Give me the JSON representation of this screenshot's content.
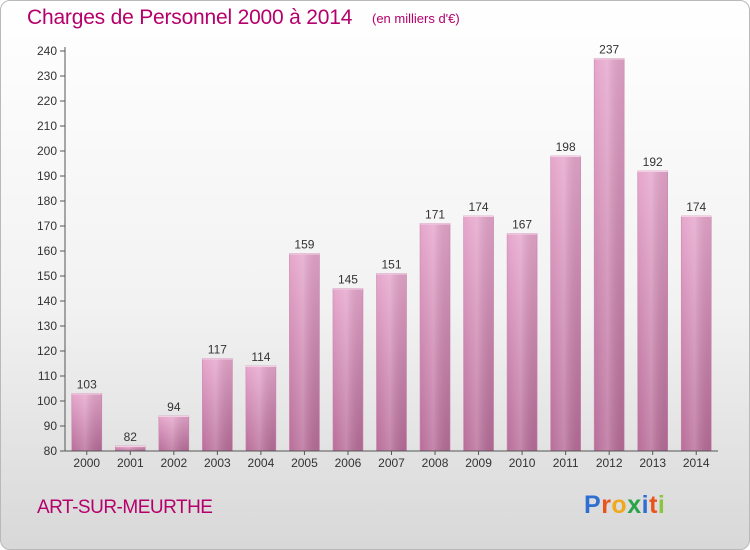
{
  "header": {
    "title": "Charges de Personnel 2000 à 2014",
    "subtitle": "(en milliers d'€)"
  },
  "footer": {
    "commune": "ART-SUR-MEURTHE",
    "brand": "Proxiti"
  },
  "colors": {
    "accent": "#b5006b",
    "bar_top": "#e6a6cc",
    "bar_bottom": "#b86d99",
    "brand_letters": [
      "#2f6fd1",
      "#e8541a",
      "#f0a81c",
      "#2aa34a",
      "#2f6fd1",
      "#e8541a",
      "#8bc53f"
    ]
  },
  "chart_data": {
    "type": "bar",
    "title": "Charges de Personnel 2000 à 2014",
    "subtitle": "(en milliers d'€)",
    "categories": [
      "2000",
      "2001",
      "2002",
      "2003",
      "2004",
      "2005",
      "2006",
      "2007",
      "2008",
      "2009",
      "2010",
      "2011",
      "2012",
      "2013",
      "2014"
    ],
    "values": [
      103,
      82,
      94,
      117,
      114,
      159,
      145,
      151,
      171,
      174,
      167,
      198,
      237,
      192,
      174
    ],
    "xlabel": "",
    "ylabel": "",
    "ylim": [
      80,
      240
    ],
    "yticks": [
      80,
      90,
      100,
      110,
      120,
      130,
      140,
      150,
      160,
      170,
      180,
      190,
      200,
      210,
      220,
      230,
      240
    ],
    "grid": false,
    "legend": "none"
  }
}
